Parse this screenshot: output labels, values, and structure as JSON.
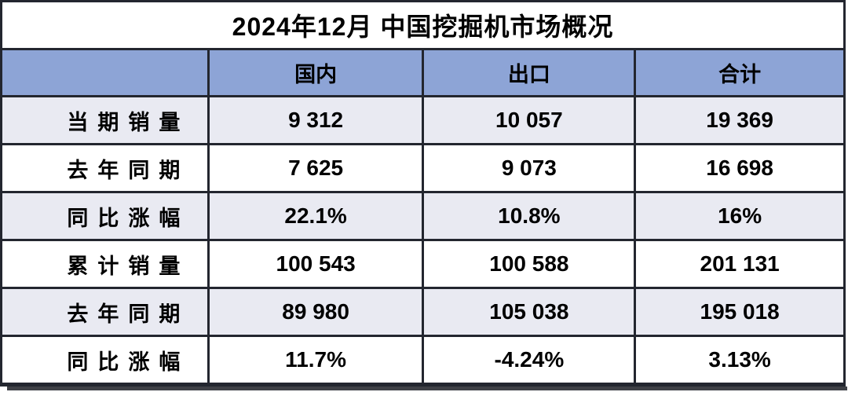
{
  "title": "2024年12月 中国挖掘机市场概况",
  "table": {
    "columns": [
      "",
      "国内",
      "出口",
      "合计"
    ],
    "rows": [
      {
        "label": "当期销量",
        "values": [
          "9 312",
          "10 057",
          "19 369"
        ]
      },
      {
        "label": "去年同期",
        "values": [
          "7 625",
          "9 073",
          "16 698"
        ]
      },
      {
        "label": "同比涨幅",
        "values": [
          "22.1%",
          "10.8%",
          "16%"
        ]
      },
      {
        "label": "累计销量",
        "values": [
          "100 543",
          "100 588",
          "201 131"
        ]
      },
      {
        "label": "去年同期",
        "values": [
          "89 980",
          "105 038",
          "195 018"
        ]
      },
      {
        "label": "同比涨幅",
        "values": [
          "11.7%",
          "-4.24%",
          "3.13%"
        ]
      }
    ]
  },
  "colors": {
    "header_bg": "#8da4d6",
    "alt_row_bg": "#e9eaf2",
    "row_bg": "#ffffff",
    "border": "#23262f",
    "shadow": "#3e4046",
    "text": "#000000"
  },
  "chart_data": {
    "type": "table",
    "title": "2024年12月 中国挖掘机市场概况",
    "columns": [
      "国内",
      "出口",
      "合计"
    ],
    "row_labels": [
      "当期销量",
      "去年同期",
      "同比涨幅",
      "累计销量",
      "去年同期",
      "同比涨幅"
    ],
    "rows": [
      [
        9312,
        10057,
        19369
      ],
      [
        7625,
        9073,
        16698
      ],
      [
        "22.1%",
        "10.8%",
        "16%"
      ],
      [
        100543,
        100588,
        201131
      ],
      [
        89980,
        105038,
        195018
      ],
      [
        "11.7%",
        "-4.24%",
        "3.13%"
      ]
    ]
  }
}
